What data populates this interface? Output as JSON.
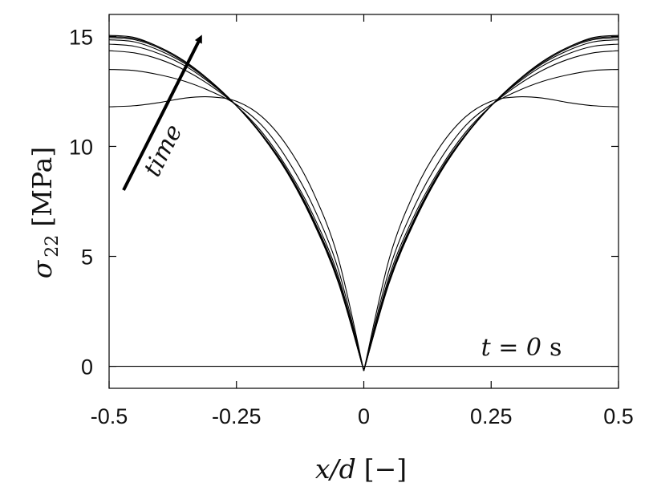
{
  "chart_data": {
    "type": "line",
    "xlabel": {
      "math": "x/d",
      "unit": "[−]"
    },
    "ylabel": {
      "math": "σ",
      "sub": "22",
      "unit": "[MPa]"
    },
    "xlim": [
      -0.5,
      0.5
    ],
    "ylim": [
      -1.0,
      16.0
    ],
    "xticks": [
      -0.5,
      -0.25,
      0,
      0.25,
      0.5
    ],
    "xtick_labels": [
      "-0.5",
      "-0.25",
      "0",
      "0.25",
      "0.5"
    ],
    "yticks": [
      0,
      5,
      10,
      15
    ],
    "ytick_labels": [
      "0",
      "5",
      "10",
      "15"
    ],
    "grid": false,
    "annotations": {
      "arrow_label": "time",
      "t0_label": {
        "math": "t = 0",
        "unit": "s"
      }
    },
    "x": [
      0,
      0.05,
      0.1,
      0.15,
      0.2,
      0.25,
      0.3,
      0.35,
      0.4,
      0.45,
      0.5
    ],
    "series": [
      {
        "values": [
          -0.2,
          4.9,
          7.95,
          10.0,
          11.35,
          12.05,
          12.25,
          12.2,
          12.0,
          11.85,
          11.8
        ]
      },
      {
        "values": [
          -0.2,
          4.4,
          7.3,
          9.4,
          10.95,
          11.9,
          12.5,
          12.95,
          13.25,
          13.45,
          13.5
        ]
      },
      {
        "values": [
          -0.2,
          4.1,
          6.9,
          9.0,
          10.65,
          11.85,
          12.75,
          13.45,
          13.95,
          14.25,
          14.35
        ]
      },
      {
        "values": [
          -0.2,
          3.95,
          6.75,
          8.9,
          10.55,
          11.85,
          12.85,
          13.65,
          14.2,
          14.55,
          14.65
        ]
      },
      {
        "values": [
          -0.2,
          3.9,
          6.7,
          8.85,
          10.5,
          11.85,
          12.9,
          13.75,
          14.35,
          14.75,
          14.85
        ]
      },
      {
        "values": [
          -0.2,
          3.85,
          6.65,
          8.8,
          10.5,
          11.85,
          12.95,
          13.8,
          14.45,
          14.85,
          14.95
        ]
      },
      {
        "values": [
          -0.2,
          3.85,
          6.6,
          8.8,
          10.5,
          11.85,
          12.95,
          13.85,
          14.5,
          14.9,
          15.0
        ]
      },
      {
        "values": [
          -0.2,
          3.8,
          6.6,
          8.8,
          10.5,
          11.85,
          12.95,
          13.85,
          14.5,
          14.95,
          15.05
        ]
      },
      {
        "values": [
          0,
          0,
          0,
          0,
          0,
          0,
          0,
          0,
          0,
          0,
          0
        ]
      }
    ]
  }
}
